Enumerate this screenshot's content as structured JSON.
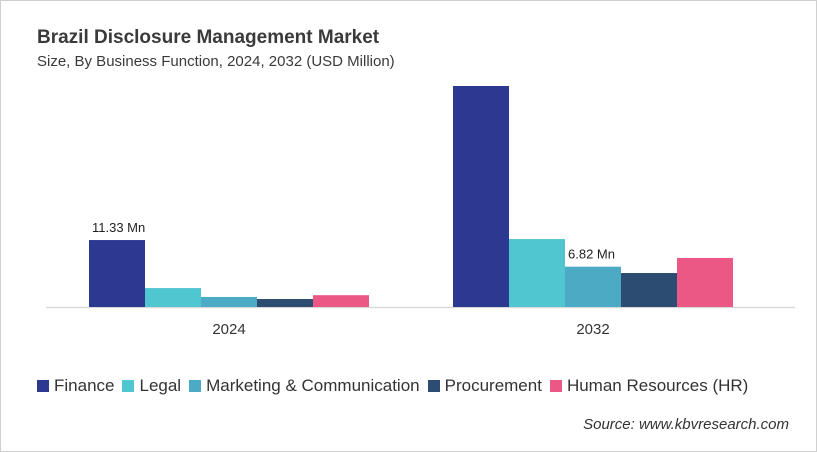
{
  "chart_data": {
    "type": "bar",
    "title": "Brazil Disclosure Management Market",
    "subtitle": "Size, By Business Function, 2024, 2032 (USD Million)",
    "categories": [
      "2024",
      "2032"
    ],
    "series": [
      {
        "name": "Finance",
        "color": "#2b3990",
        "values": [
          11.33,
          37.4
        ]
      },
      {
        "name": "Legal",
        "color": "#4fc6d0",
        "values": [
          3.2,
          11.5
        ]
      },
      {
        "name": "Marketing & Communication",
        "color": "#4baac4",
        "values": [
          1.7,
          6.82
        ]
      },
      {
        "name": "Procurement",
        "color": "#2c4c72",
        "values": [
          1.35,
          5.75
        ]
      },
      {
        "name": "Human Resources (HR)",
        "color": "#eb5886",
        "values": [
          2.0,
          8.3
        ]
      }
    ],
    "data_labels": [
      {
        "series": 0,
        "category": 0,
        "text": "11.33 Mn"
      },
      {
        "series": 2,
        "category": 1,
        "text": "6.82 Mn"
      }
    ],
    "ylim": [
      0,
      37.4
    ],
    "grid": false,
    "legend_position": "bottom"
  },
  "source": "Source: www.kbvresearch.com"
}
